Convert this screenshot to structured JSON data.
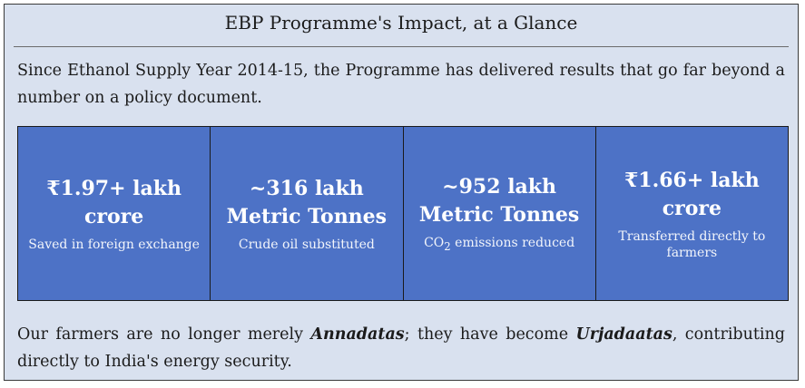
{
  "title": "EBP Programme's Impact, at a Glance",
  "intro": "Since Ethanol Supply Year 2014-15, the Programme has delivered results that go far beyond a number on a policy document.",
  "stats": [
    {
      "value": "₹1.97+ lakh\ncrore",
      "desc": "Saved in foreign exchange"
    },
    {
      "value": "~316 lakh\nMetric Tonnes",
      "desc": "Crude oil substituted"
    },
    {
      "value": "~952 lakh\nMetric Tonnes",
      "desc_prefix": "CO",
      "desc_sub": "2",
      "desc_suffix": " emissions reduced"
    },
    {
      "value": "₹1.66+ lakh\ncrore",
      "desc": "Transferred directly to farmers"
    }
  ],
  "closing": {
    "part1": "Our farmers are no longer merely ",
    "term1": "Annadatas",
    "part2": "; they have become ",
    "term2": "Urjadaatas",
    "part3": ", contributing directly to India's energy security."
  }
}
